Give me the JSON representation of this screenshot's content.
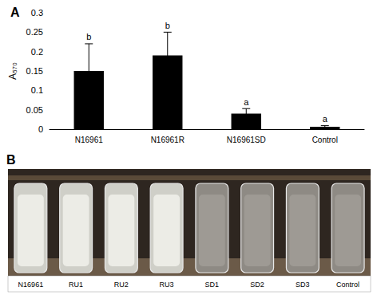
{
  "chart_data": {
    "type": "bar",
    "title": "A",
    "y_label": "A₅₇₀",
    "categories": [
      "N16961",
      "N16961R",
      "N16961SD",
      "Control"
    ],
    "values": [
      0.15,
      0.19,
      0.04,
      0.006
    ],
    "errors": [
      0.07,
      0.06,
      0.013,
      0.003
    ],
    "significance": [
      "b",
      "b",
      "a",
      "a"
    ],
    "color": "#000000",
    "ylim": [
      0,
      0.3
    ],
    "yticks": [
      0,
      0.05,
      0.1,
      0.15,
      0.2,
      0.25,
      0.3
    ],
    "grid": false
  },
  "photo": {
    "title": "B",
    "labels": [
      "N16961",
      "RU1",
      "RU2",
      "RU3",
      "SD1",
      "SD2",
      "SD3",
      "Control"
    ]
  }
}
